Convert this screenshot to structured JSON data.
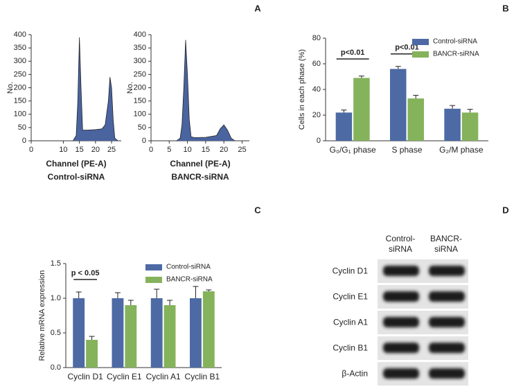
{
  "panel_labels": [
    "A",
    "B",
    "C",
    "D"
  ],
  "chart_data": [
    {
      "type": "area",
      "x": [
        13,
        14,
        14.5,
        15,
        15.5,
        16,
        17,
        20,
        22,
        23,
        24,
        24.5,
        25,
        25.5,
        26,
        27
      ],
      "values": [
        0,
        20,
        150,
        390,
        200,
        40,
        40,
        42,
        45,
        60,
        150,
        240,
        200,
        80,
        10,
        0
      ],
      "color": "#4a64a0",
      "xlim": [
        0,
        28
      ],
      "xticks": [
        0,
        10,
        15,
        20,
        25
      ],
      "ylim": [
        0,
        400
      ],
      "yticks": [
        0,
        50,
        100,
        150,
        200,
        250,
        300,
        350,
        400
      ],
      "x_label": "Channel (PE-A)",
      "y_label": "No.",
      "subtitle": "Control-siRNA"
    },
    {
      "type": "area",
      "x": [
        7,
        8,
        8.5,
        9,
        9.5,
        10,
        10.5,
        11,
        12,
        15,
        18,
        19,
        20,
        21,
        22,
        23
      ],
      "values": [
        0,
        10,
        60,
        200,
        380,
        250,
        80,
        15,
        12,
        13,
        20,
        45,
        60,
        40,
        10,
        0
      ],
      "color": "#4a64a0",
      "xlim": [
        0,
        27
      ],
      "xticks": [
        0,
        5,
        10,
        15,
        20,
        25
      ],
      "ylim": [
        0,
        400
      ],
      "yticks": [
        0,
        50,
        100,
        150,
        200,
        250,
        300,
        350,
        400
      ],
      "x_label": "Channel (PE-A)",
      "y_label": "No.",
      "subtitle": "BANCR-siRNA"
    },
    {
      "type": "bar",
      "categories": [
        "G₀/G₁ phase",
        "S phase",
        "G₂/M phase"
      ],
      "series": [
        {
          "name": "Control-siRNA",
          "color": "#4d6aa5",
          "values": [
            22,
            56,
            25
          ],
          "errors": [
            2,
            2,
            2.5
          ]
        },
        {
          "name": "BANCR-siRNA",
          "color": "#85b35c",
          "values": [
            49,
            33,
            22
          ],
          "errors": [
            1.5,
            2.5,
            2.5
          ]
        }
      ],
      "ylim": [
        0,
        80
      ],
      "yticks": [
        0,
        20,
        40,
        60,
        80
      ],
      "y_label": "Cells in each phase (%)",
      "annotations": [
        "p<0.01",
        "p<0.01"
      ],
      "legend": "upper right"
    },
    {
      "type": "bar",
      "categories": [
        "Cyclin D1",
        "Cyclin E1",
        "Cyclin A1",
        "Cyclin B1"
      ],
      "series": [
        {
          "name": "Control-siRNA",
          "color": "#4d6aa5",
          "values": [
            1.0,
            1.0,
            1.0,
            1.0
          ],
          "errors": [
            0.09,
            0.08,
            0.13,
            0.17
          ]
        },
        {
          "name": "BANCR-siRNA",
          "color": "#85b35c",
          "values": [
            0.4,
            0.9,
            0.9,
            1.1
          ],
          "errors": [
            0.05,
            0.07,
            0.07,
            0.02
          ]
        }
      ],
      "ylim": [
        0,
        1.5
      ],
      "yticks": [
        {
          "value": 0,
          "label": "0.0"
        },
        0.5,
        {
          "value": 1,
          "label": "1.0"
        },
        1.5
      ],
      "y_label": "Relative mRNA expression",
      "annotations": [
        "p < 0.05"
      ],
      "legend": "upper right"
    }
  ],
  "blot": {
    "columns": [
      [
        "Control-",
        "siRNA"
      ],
      [
        "BANCR-",
        "siRNA"
      ]
    ],
    "rows": [
      "Cyclin D1",
      "Cyclin E1",
      "Cyclin A1",
      "Cyclin B1",
      "β-Actin"
    ]
  }
}
